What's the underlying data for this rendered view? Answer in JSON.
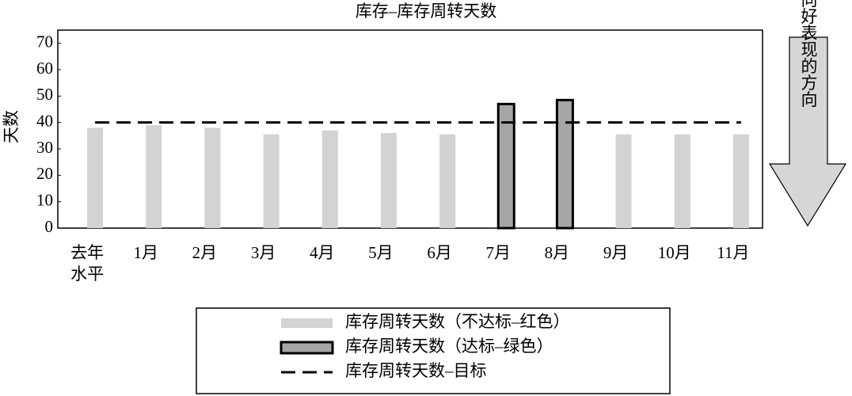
{
  "chart_data": {
    "type": "bar",
    "title": "库存–库存周转天数",
    "y_label": "天数",
    "categories": [
      "去年水平",
      "1月",
      "2月",
      "3月",
      "4月",
      "5月",
      "6月",
      "7月",
      "8月",
      "9月",
      "10月",
      "11月"
    ],
    "series": [
      {
        "name": "库存周转天数（不达标–红色）",
        "color": "#d3d3d3",
        "values": [
          38,
          39,
          38,
          35.5,
          37,
          36,
          35.5,
          null,
          null,
          35.5,
          35.5,
          35.5
        ]
      },
      {
        "name": "库存周转天数（达标–绿色）",
        "color": "#a6a6a6",
        "border": "#000000",
        "values": [
          null,
          null,
          null,
          null,
          null,
          null,
          null,
          47,
          48.5,
          null,
          null,
          null
        ]
      },
      {
        "name": "库存周转天数–目标",
        "type": "line",
        "dashed": true,
        "color": "#000000",
        "values": [
          40,
          40,
          40,
          40,
          40,
          40,
          40,
          40,
          40,
          40,
          40,
          40
        ]
      }
    ],
    "ylim": [
      0,
      75
    ],
    "yticks": [
      0,
      10,
      20,
      30,
      40,
      50,
      60,
      70
    ],
    "grid": false,
    "annotation": "向好表现的方向"
  }
}
